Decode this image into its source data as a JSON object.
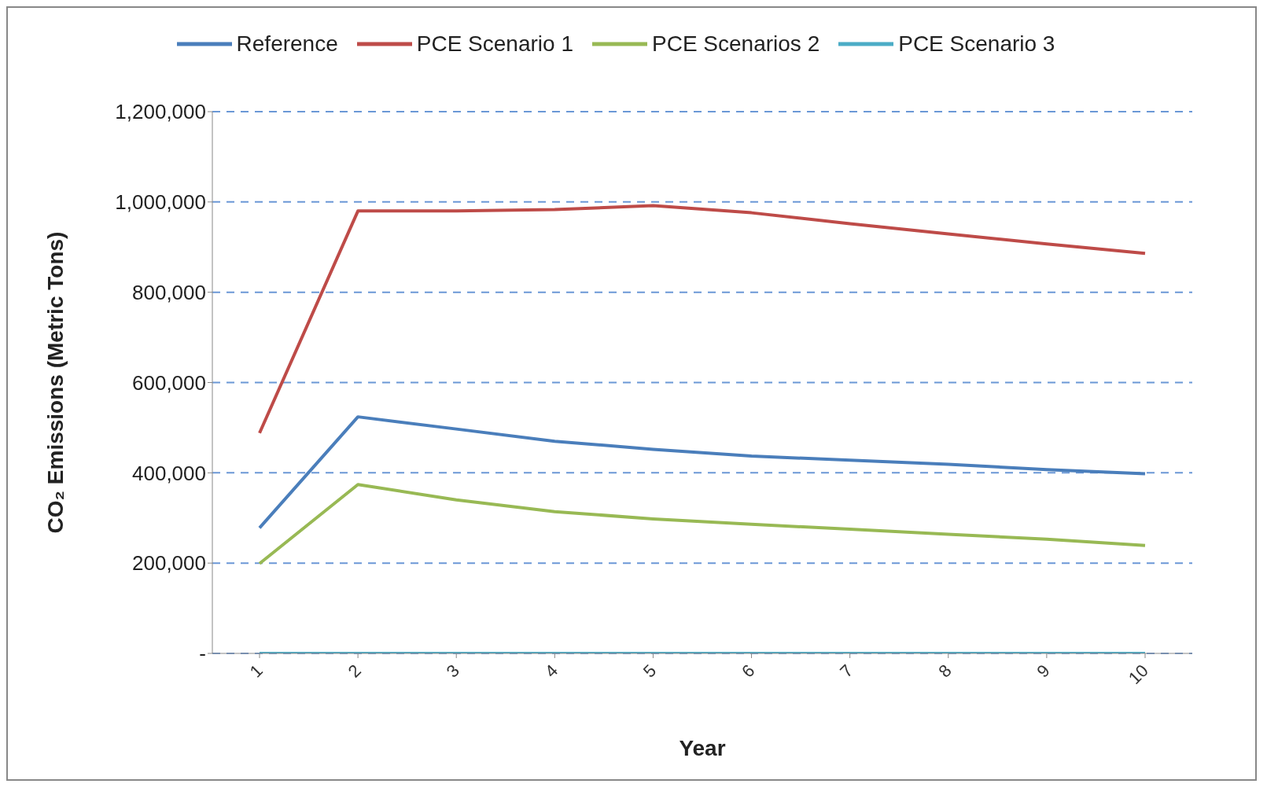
{
  "chart_data": {
    "type": "line",
    "xlabel": "Year",
    "ylabel": "CO₂ Emissions (Metric Tons)",
    "categories": [
      "1",
      "2",
      "3",
      "4",
      "5",
      "6",
      "7",
      "8",
      "9",
      "10"
    ],
    "series": [
      {
        "name": "Reference",
        "color": "#4a7ebb",
        "values": [
          278000,
          524000,
          497000,
          470000,
          452000,
          437000,
          428000,
          419000,
          407000,
          398000
        ]
      },
      {
        "name": "PCE Scenario 1",
        "color": "#be4b48",
        "values": [
          488000,
          980000,
          980000,
          983000,
          992000,
          976000,
          952000,
          929000,
          907000,
          886000
        ]
      },
      {
        "name": "PCE Scenarios 2",
        "color": "#98b954",
        "values": [
          199000,
          374000,
          340000,
          314000,
          298000,
          286000,
          275000,
          264000,
          253000,
          239000
        ]
      },
      {
        "name": "PCE Scenario 3",
        "color": "#4bacc6",
        "values": [
          0,
          0,
          0,
          0,
          0,
          0,
          0,
          0,
          0,
          0
        ]
      }
    ],
    "ylim": [
      0,
      1200000
    ],
    "yticks": [
      {
        "value": 0,
        "label": "-"
      },
      {
        "value": 200000,
        "label": "200,000"
      },
      {
        "value": 400000,
        "label": "400,000"
      },
      {
        "value": 600000,
        "label": "600,000"
      },
      {
        "value": 800000,
        "label": "800,000"
      },
      {
        "value": 1000000,
        "label": "1,000,000"
      },
      {
        "value": 1200000,
        "label": "1,200,000"
      }
    ],
    "grid": "y",
    "legend": "top",
    "marker": "none",
    "line_style": "solid"
  }
}
